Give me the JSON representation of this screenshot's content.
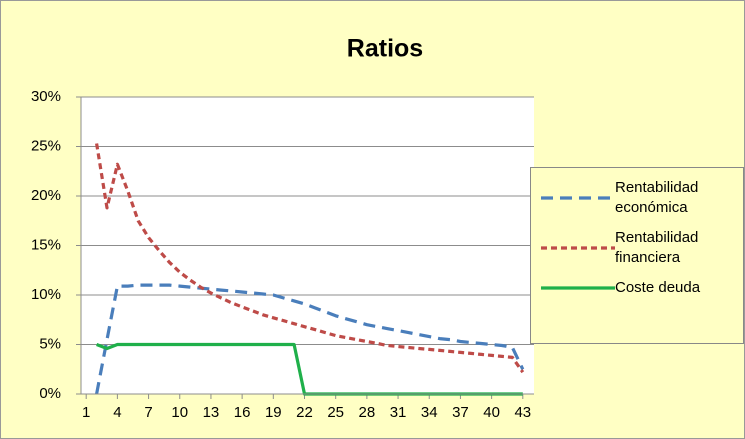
{
  "chart_data": {
    "type": "line",
    "title": "Ratios",
    "x": [
      1,
      2,
      3,
      4,
      5,
      6,
      7,
      8,
      9,
      10,
      11,
      12,
      13,
      14,
      15,
      16,
      17,
      18,
      19,
      20,
      21,
      22,
      23,
      24,
      25,
      26,
      27,
      28,
      29,
      30,
      31,
      32,
      33,
      34,
      35,
      36,
      37,
      38,
      39,
      40,
      41,
      42,
      43
    ],
    "xlim": [
      0.5,
      43.5
    ],
    "xticks": [
      1,
      4,
      7,
      10,
      13,
      16,
      19,
      22,
      25,
      28,
      31,
      34,
      37,
      40,
      43
    ],
    "ylim": [
      0,
      30
    ],
    "yticks": [
      {
        "value": 0,
        "label": "0%"
      },
      {
        "value": 5,
        "label": "5%"
      },
      {
        "value": 10,
        "label": "10%"
      },
      {
        "value": 15,
        "label": "15%"
      },
      {
        "value": 20,
        "label": "20%"
      },
      {
        "value": 25,
        "label": "25%"
      },
      {
        "value": 30,
        "label": "30%"
      }
    ],
    "grid": true,
    "legend": "right",
    "series": [
      {
        "name": "Rentabilidad económica",
        "color": "#4a7ebb",
        "dash": "dashed",
        "values": [
          null,
          0,
          5.5,
          10.9,
          10.9,
          11,
          11,
          11,
          11,
          10.9,
          10.8,
          10.7,
          10.6,
          10.5,
          10.4,
          10.3,
          10.2,
          10.1,
          10,
          9.7,
          9.4,
          9.1,
          8.7,
          8.3,
          7.9,
          7.6,
          7.3,
          7,
          6.8,
          6.6,
          6.4,
          6.2,
          6,
          5.8,
          5.6,
          5.5,
          5.3,
          5.2,
          5.1,
          5,
          4.9,
          4.7,
          2.5
        ]
      },
      {
        "name": "Rentabilidad financiera",
        "color": "#be4b48",
        "dash": "dotted",
        "values": [
          null,
          25.3,
          18.8,
          23.2,
          20.5,
          17.5,
          15.8,
          14.5,
          13.3,
          12.3,
          11.5,
          10.8,
          10.2,
          9.7,
          9.2,
          8.8,
          8.4,
          8,
          7.7,
          7.4,
          7.1,
          6.8,
          6.5,
          6.2,
          5.9,
          5.7,
          5.5,
          5.3,
          5.1,
          4.9,
          4.8,
          4.7,
          4.6,
          4.5,
          4.4,
          4.3,
          4.2,
          4.1,
          4,
          3.9,
          3.8,
          3.7,
          2.2
        ]
      },
      {
        "name": "Coste deuda",
        "color": "#1fb04a",
        "dash": "solid",
        "values": [
          null,
          5,
          4.6,
          5,
          5,
          5,
          5,
          5,
          5,
          5,
          5,
          5,
          5,
          5,
          5,
          5,
          5,
          5,
          5,
          5,
          5,
          0,
          0,
          0,
          0,
          0,
          0,
          0,
          0,
          0,
          0,
          0,
          0,
          0,
          0,
          0,
          0,
          0,
          0,
          0,
          0,
          0,
          0
        ]
      }
    ]
  }
}
